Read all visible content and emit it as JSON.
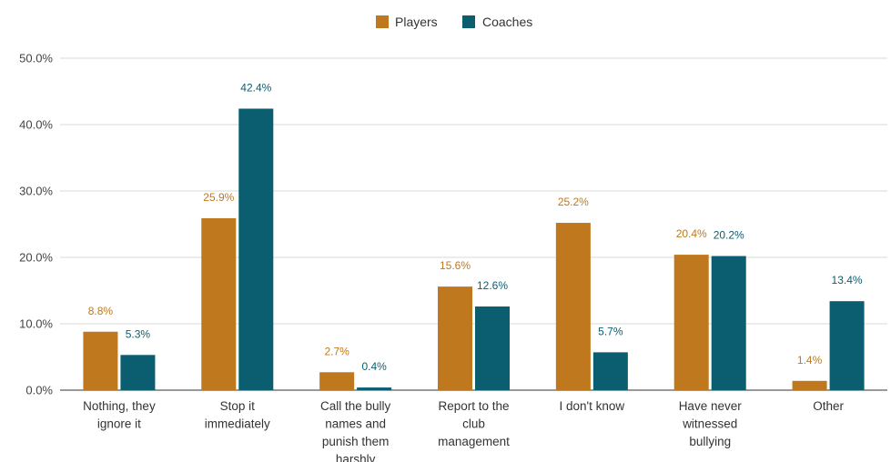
{
  "chart_data": {
    "type": "bar",
    "categories": [
      [
        "Nothing, they",
        "ignore it"
      ],
      [
        "Stop it",
        "immediately"
      ],
      [
        "Call the bully",
        "names and",
        "punish them",
        "harshly"
      ],
      [
        "Report to the",
        "club",
        "management"
      ],
      [
        "I don't know"
      ],
      [
        "Have never",
        "witnessed",
        "bullying"
      ],
      [
        "Other"
      ]
    ],
    "series": [
      {
        "name": "Players",
        "color": "#bf781d",
        "values": [
          8.8,
          25.9,
          2.7,
          15.6,
          25.2,
          20.4,
          1.4
        ],
        "labels": [
          "8.8%",
          "25.9%",
          "2.7%",
          "15.6%",
          "25.2%",
          "20.4%",
          "1.4%"
        ]
      },
      {
        "name": "Coaches",
        "color": "#0b5e6f",
        "values": [
          5.3,
          42.4,
          0.4,
          12.6,
          5.7,
          20.2,
          13.4
        ],
        "labels": [
          "5.3%",
          "42.4%",
          "0.4%",
          "12.6%",
          "5.7%",
          "20.2%",
          "13.4%"
        ]
      }
    ],
    "ylim": [
      0,
      50
    ],
    "yticks": [
      0,
      10,
      20,
      30,
      40,
      50
    ],
    "ytick_labels": [
      "0.0%",
      "10.0%",
      "20.0%",
      "30.0%",
      "40.0%",
      "50.0%"
    ],
    "grid": true,
    "legend_position": "top-center"
  }
}
